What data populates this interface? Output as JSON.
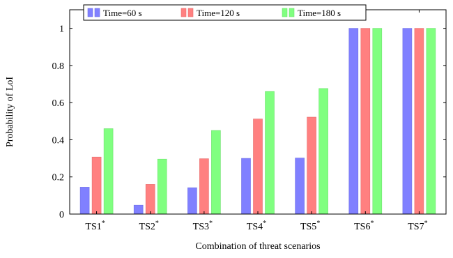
{
  "chart_data": {
    "type": "bar",
    "title": "",
    "xlabel": "Combination of threat scenarios",
    "ylabel": "Probability of LoI",
    "ylim": [
      0,
      1.1
    ],
    "yticks": [
      {
        "value": 0,
        "label": "0"
      },
      {
        "value": 0.2,
        "label": "0.2"
      },
      {
        "value": 0.4,
        "label": "0.4"
      },
      {
        "value": 0.6,
        "label": "0.6"
      },
      {
        "value": 0.8,
        "label": "0.8"
      },
      {
        "value": 1,
        "label": "1"
      }
    ],
    "categories": [
      "TS1",
      "TS2",
      "TS3",
      "TS4",
      "TS5",
      "TS6",
      "TS7"
    ],
    "category_superscript": "*",
    "series": [
      {
        "name": "Time=60 s",
        "color": "#8080ff",
        "edge": "#6f6fe6",
        "values": [
          0.145,
          0.048,
          0.142,
          0.3,
          0.302,
          1.0,
          1.0
        ]
      },
      {
        "name": "Time=120 s",
        "color": "#ff8080",
        "edge": "#e56d6d",
        "values": [
          0.307,
          0.16,
          0.298,
          0.512,
          0.522,
          1.0,
          1.0
        ]
      },
      {
        "name": "Time=180 s",
        "color": "#80ff80",
        "edge": "#6fe06f",
        "values": [
          0.46,
          0.296,
          0.45,
          0.66,
          0.676,
          1.0,
          1.0
        ]
      }
    ],
    "grid": false,
    "legend_position": "top"
  }
}
